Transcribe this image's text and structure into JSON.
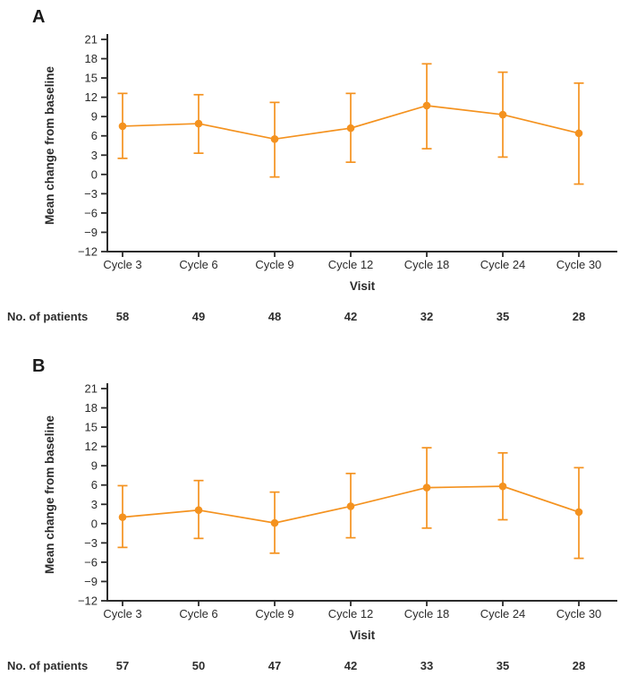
{
  "figure": {
    "accent_color": "#F4921F",
    "axis_color": "#2b2b2b",
    "text_color": "#2a2a2a"
  },
  "chart_data": [
    {
      "type": "line",
      "panel_label": "A",
      "xlabel": "Visit",
      "ylabel": "Mean change from baseline",
      "categories": [
        "Cycle 3",
        "Cycle 6",
        "Cycle 9",
        "Cycle 12",
        "Cycle 18",
        "Cycle 24",
        "Cycle 30"
      ],
      "series": [
        {
          "name": "Mean change from baseline",
          "values": [
            7.5,
            7.9,
            5.5,
            7.2,
            10.7,
            9.3,
            6.4
          ],
          "error_low": [
            2.5,
            3.3,
            -0.4,
            1.9,
            4.0,
            2.7,
            -1.5
          ],
          "error_high": [
            12.6,
            12.4,
            11.2,
            12.6,
            17.2,
            15.9,
            14.2
          ]
        }
      ],
      "ylim": [
        -12,
        21
      ],
      "ytick_step": 3,
      "grid": false,
      "legend": "none",
      "patients_label": "No. of patients",
      "patients": [
        "58",
        "49",
        "48",
        "42",
        "32",
        "35",
        "28"
      ]
    },
    {
      "type": "line",
      "panel_label": "B",
      "xlabel": "Visit",
      "ylabel": "Mean change from baseline",
      "categories": [
        "Cycle 3",
        "Cycle 6",
        "Cycle 9",
        "Cycle 12",
        "Cycle 18",
        "Cycle 24",
        "Cycle 30"
      ],
      "series": [
        {
          "name": "Mean change from baseline",
          "values": [
            1.0,
            2.1,
            0.1,
            2.7,
            5.6,
            5.8,
            1.8
          ],
          "error_low": [
            -3.7,
            -2.3,
            -4.6,
            -2.2,
            -0.7,
            0.6,
            -5.4
          ],
          "error_high": [
            5.9,
            6.7,
            4.9,
            7.8,
            11.8,
            11.0,
            8.7
          ]
        }
      ],
      "ylim": [
        -12,
        21
      ],
      "ytick_step": 3,
      "grid": false,
      "legend": "none",
      "patients_label": "No. of patients",
      "patients": [
        "57",
        "50",
        "47",
        "42",
        "33",
        "35",
        "28"
      ]
    }
  ]
}
